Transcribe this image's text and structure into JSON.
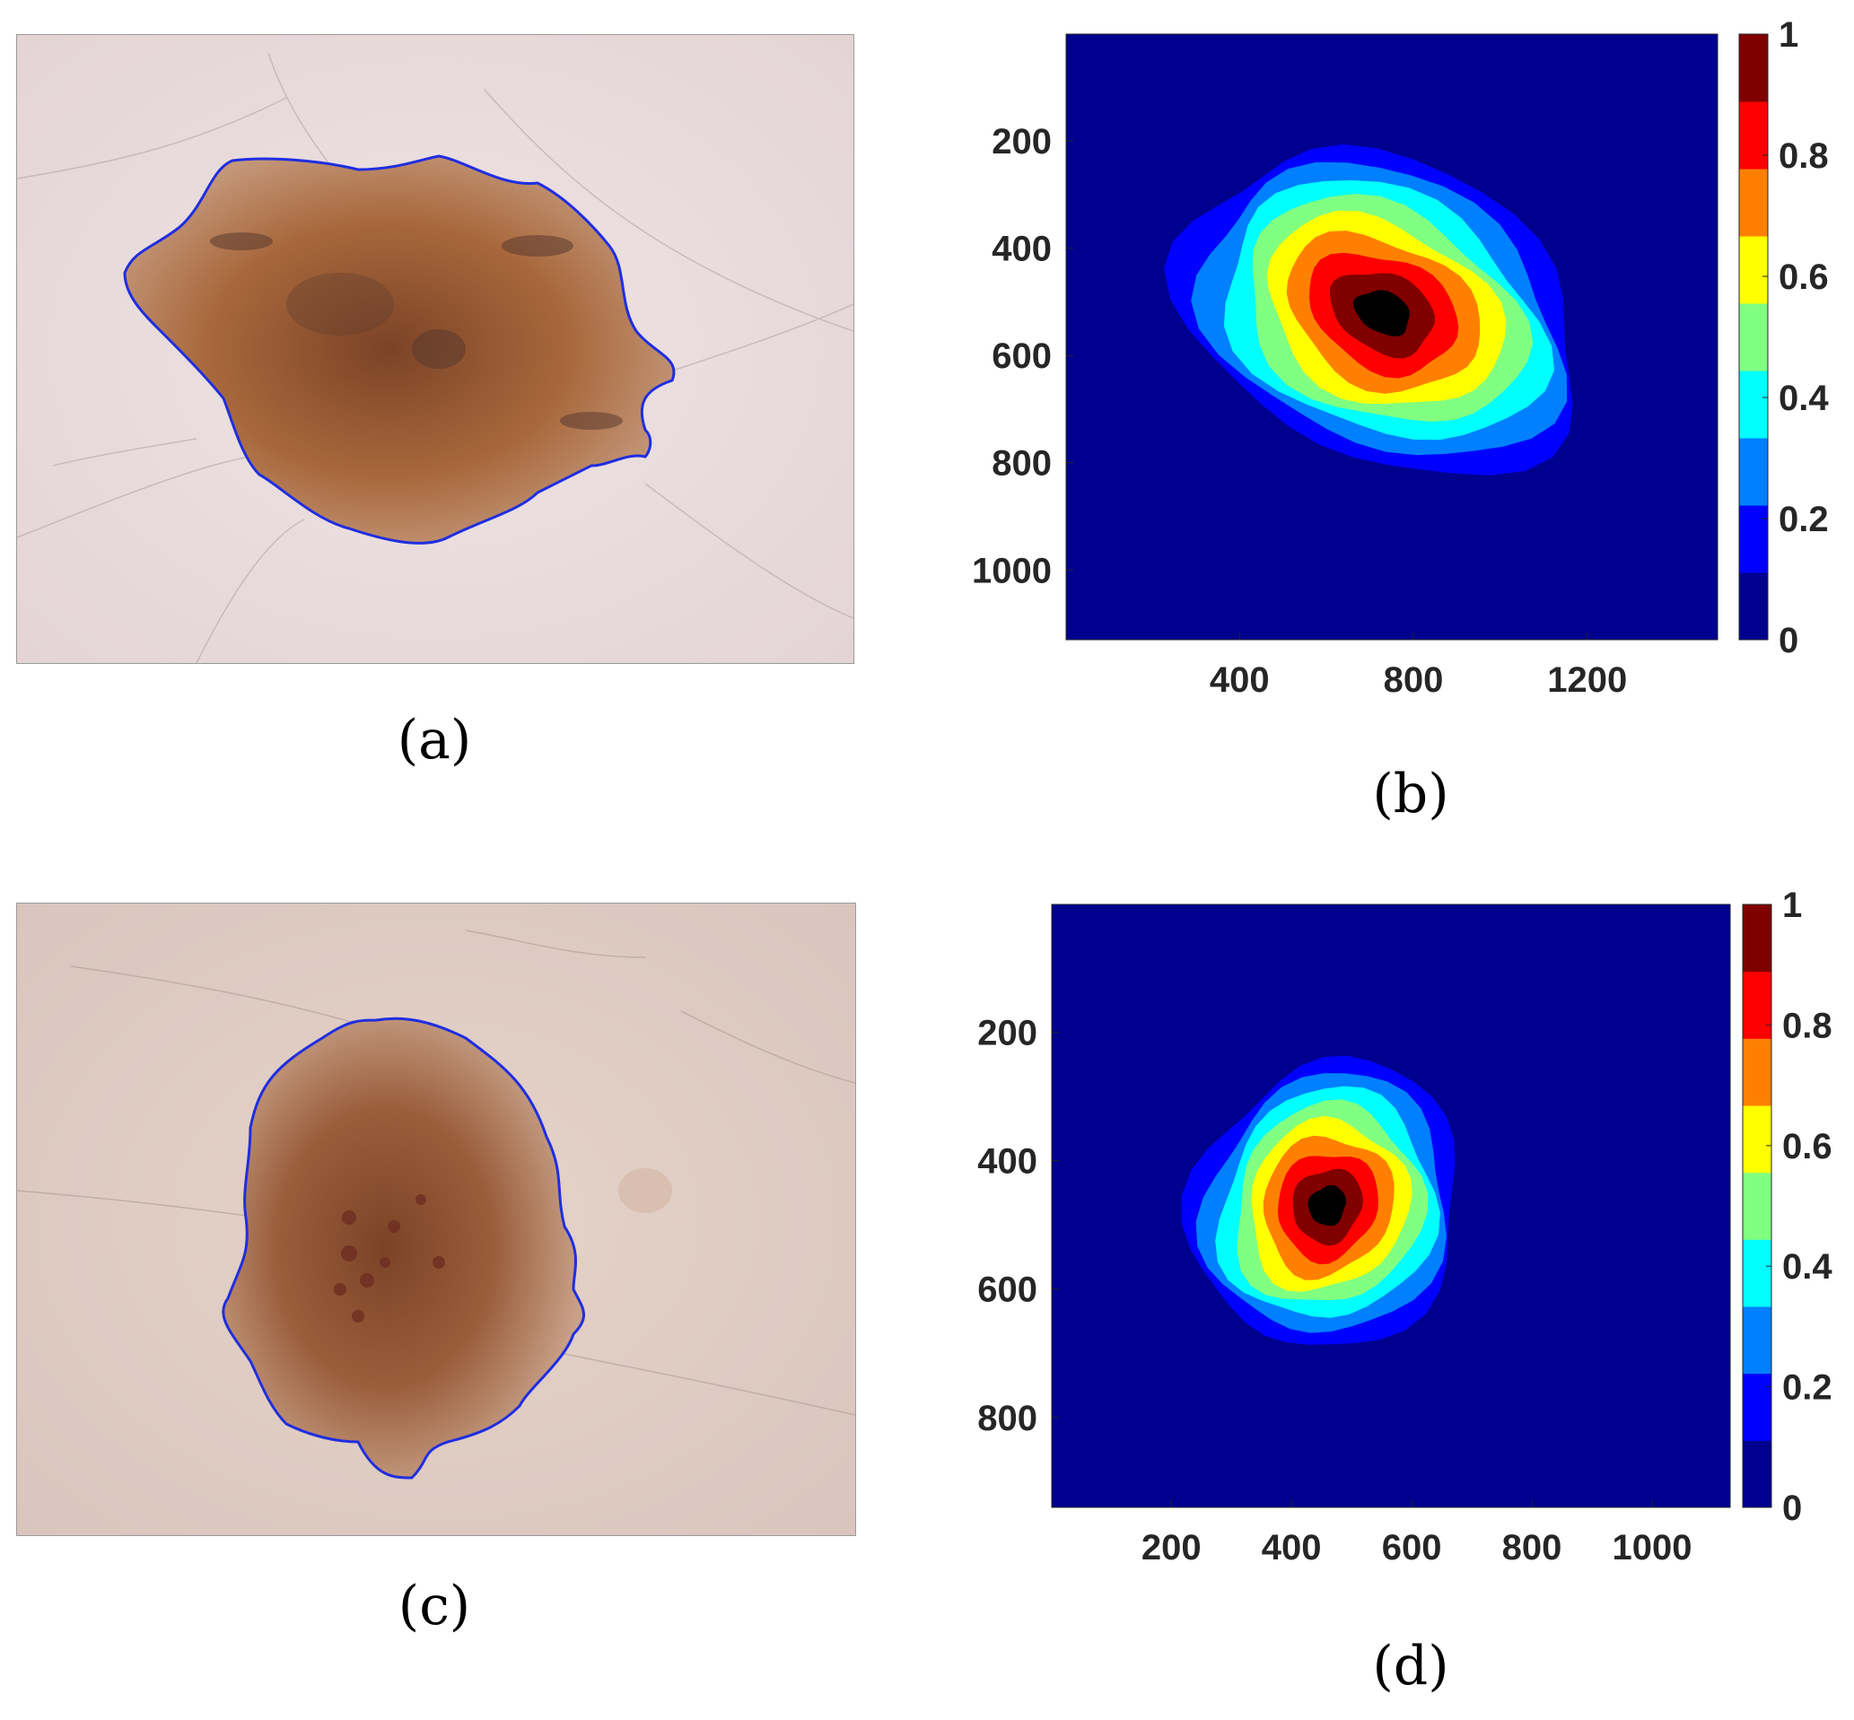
{
  "captions": {
    "a": "(a)",
    "b": "(b)",
    "c": "(c)",
    "d": "(d)"
  },
  "colormap": [
    "#00008F",
    "#0000FF",
    "#0080FF",
    "#00FFFF",
    "#80FF80",
    "#FFFF00",
    "#FF8000",
    "#FF0000",
    "#800000"
  ],
  "photo_colors": {
    "skin": "#e9dcdc",
    "lesion": "#a8683c",
    "lesion_dark": "#7b4326",
    "border": "#1f2ee0"
  },
  "chart_data": [
    {
      "type": "heatmap",
      "panel": "b",
      "title": "",
      "xlabel": "",
      "ylabel": "",
      "xlim": [
        1,
        1500
      ],
      "ylim": [
        1,
        1130
      ],
      "y_reversed": true,
      "xticks": [
        400,
        800,
        1200
      ],
      "yticks": [
        200,
        400,
        600,
        800,
        1000
      ],
      "colorbar": {
        "range": [
          0,
          1
        ],
        "ticks": [
          0,
          0.2,
          0.4,
          0.6,
          0.8,
          1
        ],
        "labels": [
          "0",
          "0.2",
          "0.4",
          "0.6",
          "0.8",
          "1"
        ]
      },
      "contour_levels": [
        0.1,
        0.2,
        0.3,
        0.4,
        0.5,
        0.6,
        0.7,
        0.8,
        0.9
      ],
      "peak": {
        "x": 730,
        "y": 520,
        "value": 1
      },
      "extent_level_0_1": {
        "x": [
          200,
          1170
        ],
        "y": [
          220,
          840
        ]
      }
    },
    {
      "type": "heatmap",
      "panel": "d",
      "title": "",
      "xlabel": "",
      "ylabel": "",
      "xlim": [
        1,
        1130
      ],
      "ylim": [
        1,
        940
      ],
      "y_reversed": true,
      "xticks": [
        200,
        400,
        600,
        800,
        1000
      ],
      "yticks": [
        200,
        400,
        600,
        800
      ],
      "colorbar": {
        "range": [
          0,
          1
        ],
        "ticks": [
          0,
          0.2,
          0.4,
          0.6,
          0.8,
          1
        ],
        "labels": [
          "0",
          "0.2",
          "0.4",
          "0.6",
          "0.8",
          "1"
        ]
      },
      "contour_levels": [
        0.1,
        0.2,
        0.3,
        0.4,
        0.5,
        0.6,
        0.7,
        0.8,
        0.9
      ],
      "peak": {
        "x": 460,
        "y": 470,
        "value": 1
      },
      "extent_level_0_1": {
        "x": [
          240,
          680
        ],
        "y": [
          210,
          720
        ]
      }
    }
  ]
}
